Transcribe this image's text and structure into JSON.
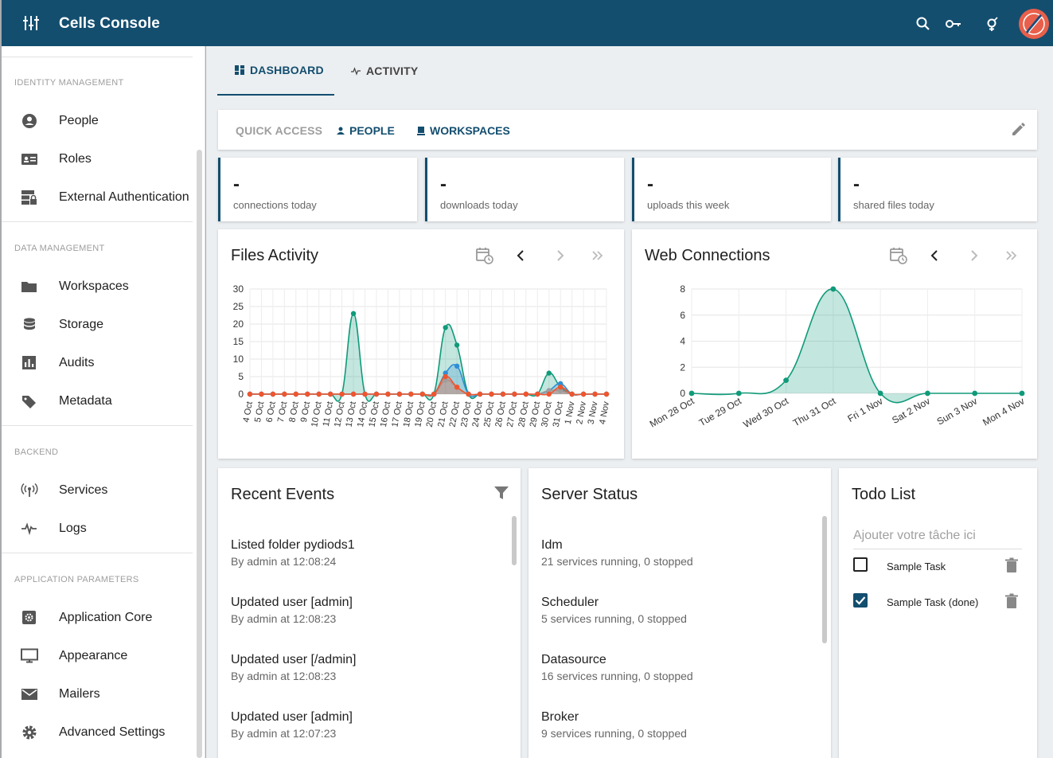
{
  "app": {
    "title": "Cells Console"
  },
  "topbar_icons": [
    "menu-icon",
    "search-icon",
    "key-icon",
    "gender-icon",
    "avatar"
  ],
  "sidebar": {
    "sections": [
      {
        "title": "IDENTITY MANAGEMENT",
        "items": [
          {
            "label": "People",
            "icon": "person-icon"
          },
          {
            "label": "Roles",
            "icon": "id-card-icon"
          },
          {
            "label": "External Authentication",
            "icon": "server-lock-icon"
          }
        ]
      },
      {
        "title": "DATA MANAGEMENT",
        "items": [
          {
            "label": "Workspaces",
            "icon": "folder-icon"
          },
          {
            "label": "Storage",
            "icon": "database-icon"
          },
          {
            "label": "Audits",
            "icon": "chart-icon"
          },
          {
            "label": "Metadata",
            "icon": "tag-icon"
          }
        ]
      },
      {
        "title": "BACKEND",
        "items": [
          {
            "label": "Services",
            "icon": "antenna-icon"
          },
          {
            "label": "Logs",
            "icon": "pulse-icon"
          }
        ]
      },
      {
        "title": "APPLICATION PARAMETERS",
        "items": [
          {
            "label": "Application Core",
            "icon": "gear-box-icon"
          },
          {
            "label": "Appearance",
            "icon": "monitor-icon"
          },
          {
            "label": "Mailers",
            "icon": "mail-icon"
          },
          {
            "label": "Advanced Settings",
            "icon": "gear-icon"
          }
        ]
      }
    ]
  },
  "tabs": [
    {
      "label": "DASHBOARD",
      "active": true
    },
    {
      "label": "ACTIVITY",
      "active": false
    }
  ],
  "quick_access": {
    "label": "QUICK ACCESS",
    "links": [
      "PEOPLE",
      "WORKSPACES"
    ]
  },
  "stats": [
    {
      "value": "-",
      "label": "connections today"
    },
    {
      "value": "-",
      "label": "downloads today"
    },
    {
      "value": "-",
      "label": "uploads this week"
    },
    {
      "value": "-",
      "label": "shared files today"
    }
  ],
  "files_activity": {
    "title": "Files Activity",
    "chart_data": {
      "type": "area",
      "ylim": [
        0,
        30
      ],
      "yticks": [
        0,
        5,
        10,
        15,
        20,
        25,
        30
      ],
      "x": [
        "4 Oct",
        "5 Oct",
        "6 Oct",
        "7 Oct",
        "8 Oct",
        "9 Oct",
        "10 Oct",
        "11 Oct",
        "12 Oct",
        "13 Oct",
        "14 Oct",
        "15 Oct",
        "16 Oct",
        "17 Oct",
        "18 Oct",
        "19 Oct",
        "20 Oct",
        "21 Oct",
        "22 Oct",
        "23 Oct",
        "24 Oct",
        "25 Oct",
        "26 Oct",
        "27 Oct",
        "28 Oct",
        "29 Oct",
        "30 Oct",
        "31 Oct",
        "1 Nov",
        "2 Nov",
        "3 Nov",
        "4 Nov"
      ],
      "series": [
        {
          "color": "#109a7a",
          "values": [
            0,
            0,
            0,
            0,
            0,
            0,
            0,
            0,
            0,
            23,
            0,
            0,
            0,
            0,
            0,
            0,
            0,
            19,
            14,
            0,
            0,
            0,
            0,
            0,
            0,
            0,
            6,
            2,
            0,
            0,
            0,
            0
          ]
        },
        {
          "color": "#2f8fd6",
          "values": [
            0,
            0,
            0,
            0,
            0,
            0,
            0,
            0,
            0,
            0,
            0,
            0,
            0,
            0,
            0,
            0,
            0,
            6,
            8,
            0,
            0,
            0,
            0,
            0,
            0,
            0,
            1,
            3,
            0,
            0,
            0,
            0
          ]
        },
        {
          "color": "#9e9e9e",
          "values": [
            0,
            0,
            0,
            0,
            0,
            0,
            0,
            0,
            0,
            0,
            0,
            0,
            0,
            0,
            0,
            0,
            0,
            4,
            2,
            0,
            0,
            0,
            0,
            0,
            0,
            0,
            1,
            1,
            0,
            0,
            0,
            0
          ]
        },
        {
          "color": "#f0552e",
          "values": [
            0,
            0,
            0,
            0,
            0,
            0,
            0,
            0,
            0,
            0,
            0,
            0,
            0,
            0,
            0,
            0,
            0,
            5,
            2,
            0,
            0,
            0,
            0,
            0,
            0,
            0,
            0,
            2,
            0,
            0,
            0,
            0
          ]
        }
      ]
    }
  },
  "web_connections": {
    "title": "Web Connections",
    "chart_data": {
      "type": "area",
      "ylim": [
        0,
        8
      ],
      "yticks": [
        0,
        2,
        4,
        6,
        8
      ],
      "x": [
        "Mon 28 Oct",
        "Tue 29 Oct",
        "Wed 30 Oct",
        "Thu 31 Oct",
        "Fri 1 Nov",
        "Sat 2 Nov",
        "Sun 3 Nov",
        "Mon 4 Nov"
      ],
      "series": [
        {
          "color": "#109a7a",
          "values": [
            0,
            0,
            1,
            8,
            0,
            0,
            0,
            0
          ]
        }
      ]
    }
  },
  "recent_events": {
    "title": "Recent Events",
    "items": [
      {
        "title": "Listed folder pydiods1",
        "sub": "By admin at 12:08:24"
      },
      {
        "title": "Updated user [admin]",
        "sub": "By admin at 12:08:23"
      },
      {
        "title": "Updated user [/admin]",
        "sub": "By admin at 12:08:23"
      },
      {
        "title": "Updated user [admin]",
        "sub": "By admin at 12:07:23"
      }
    ]
  },
  "server_status": {
    "title": "Server Status",
    "items": [
      {
        "title": "Idm",
        "sub": "21 services running, 0 stopped"
      },
      {
        "title": "Scheduler",
        "sub": "5 services running, 0 stopped"
      },
      {
        "title": "Datasource",
        "sub": "16 services running, 0 stopped"
      },
      {
        "title": "Broker",
        "sub": "9 services running, 0 stopped"
      }
    ]
  },
  "todo": {
    "title": "Todo List",
    "placeholder": "Ajouter votre tâche ici",
    "items": [
      {
        "label": "Sample Task",
        "done": false
      },
      {
        "label": "Sample Task (done)",
        "done": true
      }
    ]
  },
  "colors": {
    "primary": "#134e6f",
    "teal": "#109a7a",
    "blue": "#2f8fd6",
    "orange": "#f0552e"
  }
}
